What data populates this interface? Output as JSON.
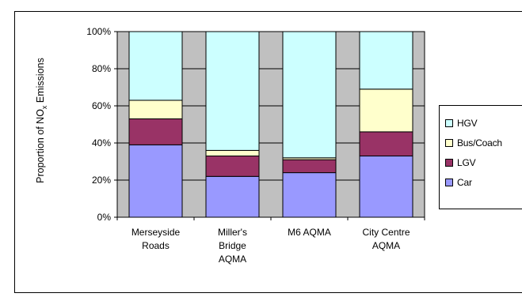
{
  "chart_data": {
    "type": "bar",
    "stacked": true,
    "ylabel_parts": [
      "Proportion of NO",
      "x",
      " Emissions"
    ],
    "ylim": [
      0,
      100
    ],
    "yticks": [
      "0%",
      "20%",
      "40%",
      "60%",
      "80%",
      "100%"
    ],
    "grid": true,
    "legend_position": "right",
    "categories": [
      [
        "Merseyside",
        "Roads"
      ],
      [
        "Miller's",
        "Bridge",
        "AQMA"
      ],
      [
        "M6 AQMA"
      ],
      [
        "City Centre",
        "AQMA"
      ]
    ],
    "series": [
      {
        "name": "Car",
        "color": "#9999ff",
        "values": [
          39,
          22,
          24,
          33
        ]
      },
      {
        "name": "LGV",
        "color": "#993366",
        "values": [
          14,
          11,
          7,
          13
        ]
      },
      {
        "name": "Bus/Coach",
        "color": "#ffffcc",
        "values": [
          10,
          3,
          1,
          23
        ]
      },
      {
        "name": "HGV",
        "color": "#ccffff",
        "values": [
          37,
          64,
          68,
          31
        ]
      }
    ],
    "legend_order": [
      "HGV",
      "Bus/Coach",
      "LGV",
      "Car"
    ],
    "plot_background": "#c0c0c0"
  }
}
